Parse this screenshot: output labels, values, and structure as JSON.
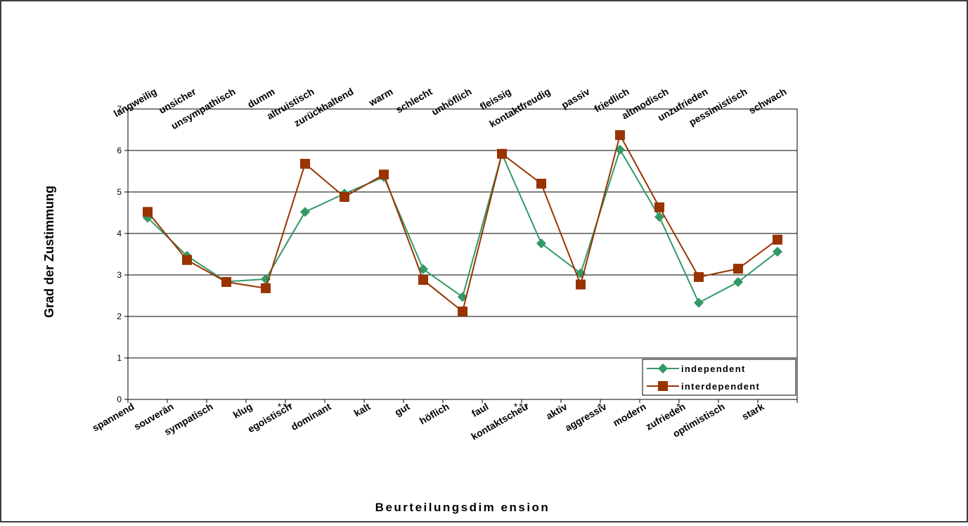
{
  "chart_data": {
    "type": "line",
    "title": "",
    "xlabel": "Beurteilungsdim ension",
    "ylabel": "Grad der Zustimmung",
    "ylim": [
      0,
      7
    ],
    "yticks": [
      "0",
      "1",
      "2",
      "3",
      "4",
      "5",
      "6",
      "7"
    ],
    "grid": true,
    "legend_position": "bottom-right",
    "categories_bottom": [
      "spannend",
      "souverän",
      "sympatisch",
      "klug",
      "egoistisch",
      "dominant",
      "kalt",
      "gut",
      "höflich",
      "faul",
      "kontaktscheu",
      "aktiv",
      "aggressiv",
      "modern",
      "zufrieden",
      "optimistisch",
      "stark"
    ],
    "categories_top": [
      "langweilig",
      "unsicher",
      "unsympathisch",
      "dumm",
      "altruistisch",
      "zurückhaltend",
      "warm",
      "schlecht",
      "unhöflich",
      "fleissig",
      "kontaktfreudig",
      "passiv",
      "friedlich",
      "altmodisch",
      "unzufrieden",
      "pessimistisch",
      "schwach"
    ],
    "significance": [
      "",
      "",
      "",
      "",
      "***",
      "",
      "",
      "",
      "",
      "",
      "***",
      "",
      "*",
      "",
      "*",
      "",
      ""
    ],
    "series": [
      {
        "name": "independent",
        "color": "#339966",
        "marker": "diamond",
        "values": [
          4.38,
          3.46,
          2.84,
          2.9,
          4.52,
          4.96,
          5.36,
          3.14,
          2.47,
          5.92,
          3.76,
          3.04,
          6.02,
          4.4,
          2.33,
          2.83,
          3.56
        ]
      },
      {
        "name": "interdependent",
        "color": "#993300",
        "marker": "square",
        "values": [
          4.52,
          3.36,
          2.83,
          2.68,
          5.68,
          4.88,
          5.42,
          2.88,
          2.12,
          5.92,
          5.2,
          2.77,
          6.37,
          4.63,
          2.95,
          3.15,
          3.85
        ]
      }
    ]
  }
}
